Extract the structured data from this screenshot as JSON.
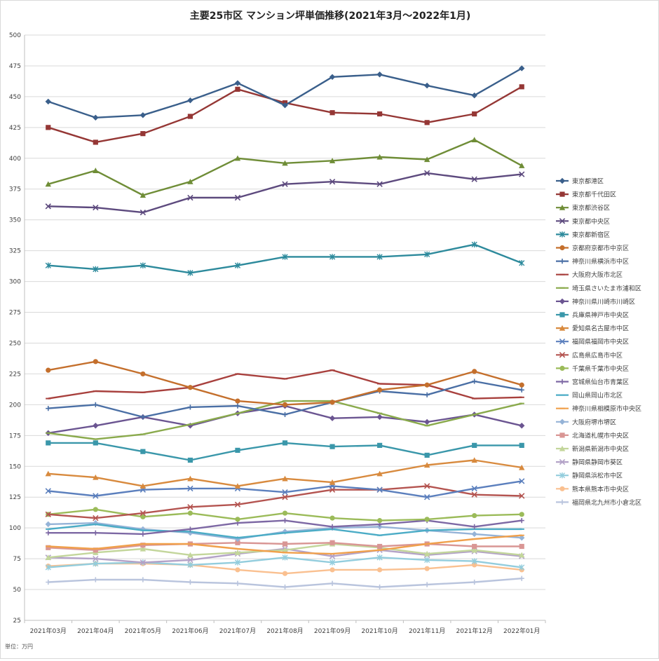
{
  "chart_data": {
    "type": "line",
    "title": "主要25市区 マンション坪単価推移(2021年3月～2022年1月)",
    "unit_note": "単位：万円",
    "ylim": [
      25,
      500
    ],
    "yticks": [
      25,
      50,
      75,
      100,
      125,
      150,
      175,
      200,
      225,
      250,
      275,
      300,
      325,
      350,
      375,
      400,
      425,
      450,
      475,
      500
    ],
    "grid": true,
    "legend_position": "right",
    "categories": [
      "2021年03月",
      "2021年04月",
      "2021年05月",
      "2021年06月",
      "2021年07月",
      "2021年08月",
      "2021年09月",
      "2021年10月",
      "2021年11月",
      "2021年12月",
      "2022年01月"
    ],
    "series": [
      {
        "name": "東京都港区",
        "color": "#3a5f8b",
        "marker": "diamond",
        "values": [
          446,
          433,
          435,
          447,
          461,
          443,
          466,
          468,
          459,
          451,
          473
        ]
      },
      {
        "name": "東京都千代田区",
        "color": "#953735",
        "marker": "square",
        "values": [
          425,
          413,
          420,
          434,
          456,
          445,
          437,
          436,
          429,
          436,
          458
        ]
      },
      {
        "name": "東京都渋谷区",
        "color": "#6f8d37",
        "marker": "triangle",
        "values": [
          379,
          390,
          370,
          381,
          400,
          396,
          398,
          401,
          399,
          415,
          394
        ]
      },
      {
        "name": "東京都中央区",
        "color": "#5d4a7e",
        "marker": "x",
        "values": [
          361,
          360,
          356,
          368,
          368,
          379,
          381,
          379,
          388,
          383,
          387
        ]
      },
      {
        "name": "東京都新宿区",
        "color": "#2d8a9c",
        "marker": "star",
        "values": [
          313,
          310,
          313,
          307,
          313,
          320,
          320,
          320,
          322,
          330,
          315
        ]
      },
      {
        "name": "京都府京都市中京区",
        "color": "#c46f2c",
        "marker": "circle",
        "values": [
          228,
          235,
          225,
          214,
          203,
          200,
          202,
          212,
          216,
          227,
          216
        ]
      },
      {
        "name": "神奈川県横浜市中区",
        "color": "#4a6fa5",
        "marker": "plus",
        "values": [
          197,
          200,
          190,
          198,
          199,
          192,
          202,
          211,
          208,
          219,
          212
        ]
      },
      {
        "name": "大阪府大阪市北区",
        "color": "#a8403d",
        "marker": "dash",
        "values": [
          205,
          211,
          210,
          214,
          225,
          221,
          228,
          217,
          216,
          205,
          206
        ]
      },
      {
        "name": "埼玉県さいたま市浦和区",
        "color": "#8aaa4c",
        "marker": "dash",
        "values": [
          177,
          172,
          176,
          184,
          193,
          203,
          203,
          193,
          183,
          192,
          201
        ]
      },
      {
        "name": "神奈川県川崎市川崎区",
        "color": "#6b5591",
        "marker": "diamond",
        "values": [
          177,
          183,
          190,
          183,
          193,
          199,
          189,
          190,
          186,
          192,
          183
        ]
      },
      {
        "name": "兵庫県神戸市中央区",
        "color": "#3a97aa",
        "marker": "square",
        "values": [
          169,
          169,
          162,
          155,
          163,
          169,
          166,
          167,
          159,
          167,
          167
        ]
      },
      {
        "name": "愛知県名古屋市中区",
        "color": "#d88a3e",
        "marker": "triangle",
        "values": [
          144,
          141,
          134,
          140,
          134,
          140,
          137,
          144,
          151,
          155,
          149
        ]
      },
      {
        "name": "福岡県福岡市中央区",
        "color": "#5b7fbd",
        "marker": "x",
        "values": [
          130,
          126,
          131,
          132,
          132,
          129,
          134,
          131,
          125,
          132,
          138
        ]
      },
      {
        "name": "広島県広島市中区",
        "color": "#b45450",
        "marker": "x",
        "values": [
          111,
          108,
          112,
          117,
          119,
          125,
          131,
          131,
          134,
          127,
          126
        ]
      },
      {
        "name": "千葉県千葉市中央区",
        "color": "#9bbb59",
        "marker": "circle",
        "values": [
          111,
          115,
          109,
          112,
          107,
          112,
          108,
          106,
          107,
          110,
          111
        ]
      },
      {
        "name": "宮城県仙台市青葉区",
        "color": "#7d68a4",
        "marker": "plus",
        "values": [
          96,
          96,
          95,
          99,
          104,
          106,
          101,
          103,
          106,
          101,
          106
        ]
      },
      {
        "name": "岡山県岡山市北区",
        "color": "#4bacc6",
        "marker": "dash",
        "values": [
          99,
          103,
          98,
          97,
          92,
          96,
          99,
          94,
          98,
          99,
          99
        ]
      },
      {
        "name": "神奈川県相模原市中央区",
        "color": "#f0a04b",
        "marker": "dash",
        "values": [
          85,
          83,
          87,
          87,
          83,
          80,
          79,
          82,
          87,
          91,
          94
        ]
      },
      {
        "name": "大阪府堺市堺区",
        "color": "#95b3d7",
        "marker": "diamond",
        "values": [
          103,
          104,
          99,
          96,
          91,
          97,
          100,
          101,
          98,
          95,
          92
        ]
      },
      {
        "name": "北海道札幌市中央区",
        "color": "#d99694",
        "marker": "square",
        "values": [
          84,
          82,
          86,
          87,
          88,
          87,
          88,
          85,
          87,
          85,
          85
        ]
      },
      {
        "name": "新潟県新潟市中央区",
        "color": "#c3d69b",
        "marker": "triangle",
        "values": [
          76,
          80,
          83,
          78,
          80,
          82,
          87,
          84,
          79,
          82,
          78
        ]
      },
      {
        "name": "静岡県静岡市葵区",
        "color": "#b3a2c7",
        "marker": "x",
        "values": [
          76,
          75,
          72,
          74,
          79,
          83,
          77,
          82,
          78,
          81,
          77
        ]
      },
      {
        "name": "静岡県浜松市中区",
        "color": "#93cddd",
        "marker": "star",
        "values": [
          68,
          71,
          72,
          70,
          72,
          76,
          72,
          76,
          74,
          73,
          68
        ]
      },
      {
        "name": "熊本県熊本市中央区",
        "color": "#fac090",
        "marker": "circle",
        "values": [
          69,
          71,
          71,
          70,
          66,
          63,
          66,
          66,
          67,
          70,
          66
        ]
      },
      {
        "name": "福岡県北九州市小倉北区",
        "color": "#b9c4dd",
        "marker": "plus",
        "values": [
          56,
          58,
          58,
          56,
          55,
          52,
          55,
          52,
          54,
          56,
          59
        ]
      }
    ]
  }
}
